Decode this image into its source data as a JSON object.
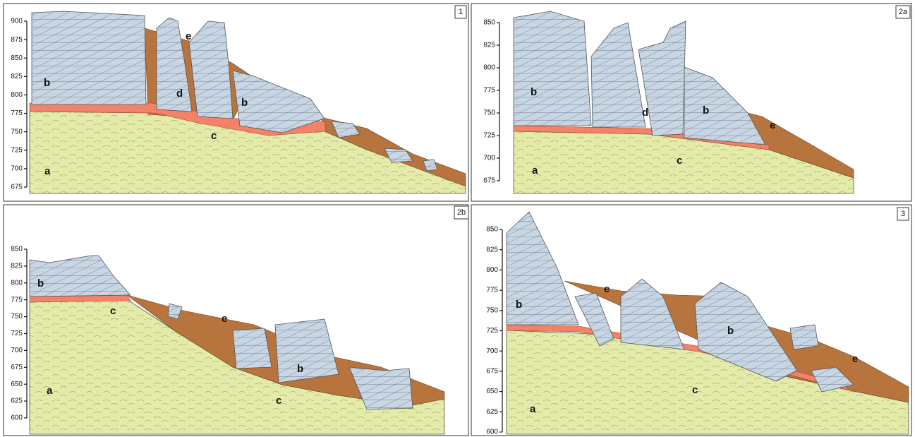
{
  "panels": [
    {
      "label": "1",
      "yticks": [
        900,
        875,
        850,
        825,
        800,
        775,
        750,
        725,
        700,
        675
      ],
      "letters": [
        "b",
        "d",
        "e",
        "b",
        "c",
        "a"
      ]
    },
    {
      "label": "2a",
      "yticks": [
        850,
        825,
        800,
        775,
        750,
        725,
        700,
        675
      ],
      "letters": [
        "b",
        "d",
        "b",
        "e",
        "c",
        "a"
      ]
    },
    {
      "label": "2b",
      "yticks": [
        850,
        825,
        800,
        775,
        750,
        725,
        700,
        675,
        650,
        625,
        600
      ],
      "letters": [
        "b",
        "c",
        "e",
        "b",
        "c",
        "a"
      ]
    },
    {
      "label": "3",
      "yticks": [
        850,
        825,
        800,
        775,
        750,
        725,
        700,
        675,
        650,
        625,
        600
      ],
      "letters": [
        "b",
        "e",
        "b",
        "e",
        "c",
        "a"
      ]
    }
  ]
}
